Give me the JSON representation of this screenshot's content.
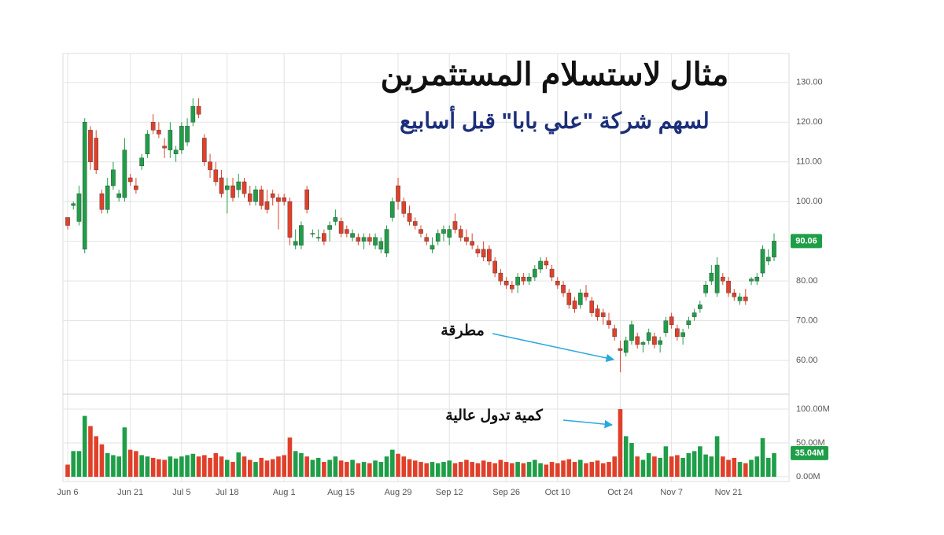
{
  "chart_data": {
    "type": "candlestick",
    "title": "مثال لاستسلام المستثمرين",
    "subtitle": "لسهم شركة \"علي بابا\" قبل أسابيع",
    "annotations": [
      "مطرقة",
      "كمية تدول عالية"
    ],
    "categories": [
      "Jun 6",
      null,
      null,
      null,
      null,
      null,
      null,
      null,
      null,
      null,
      null,
      "Jun 21",
      null,
      null,
      null,
      null,
      null,
      null,
      null,
      null,
      "Jul 5",
      null,
      null,
      null,
      null,
      null,
      null,
      null,
      "Jul 18",
      null,
      null,
      null,
      null,
      null,
      null,
      null,
      null,
      null,
      "Aug 1",
      null,
      null,
      null,
      null,
      null,
      null,
      null,
      null,
      null,
      "Aug 15",
      null,
      null,
      null,
      null,
      null,
      null,
      null,
      null,
      null,
      "Aug 29",
      null,
      null,
      null,
      null,
      null,
      null,
      null,
      null,
      "Sep 12",
      null,
      null,
      null,
      null,
      null,
      null,
      null,
      null,
      null,
      "Sep 26",
      null,
      null,
      null,
      null,
      null,
      null,
      null,
      null,
      "Oct 10",
      null,
      null,
      null,
      null,
      null,
      null,
      null,
      null,
      null,
      null,
      "Oct 24",
      null,
      null,
      null,
      null,
      null,
      null,
      null,
      null,
      "Nov 7",
      null,
      null,
      null,
      null,
      null,
      null,
      null,
      null,
      null,
      "Nov 21",
      null,
      null,
      null,
      null,
      null,
      null,
      null,
      null
    ],
    "open": [
      96,
      99,
      95,
      88,
      118,
      116,
      102,
      98,
      104,
      101,
      101,
      106,
      104,
      109,
      112,
      120,
      118,
      114,
      113,
      112,
      113,
      115,
      120,
      124,
      116,
      110,
      108,
      106,
      103,
      104,
      103,
      105,
      102,
      100,
      103,
      100,
      102,
      101,
      101,
      100,
      89,
      89,
      103,
      92,
      91,
      92,
      93,
      95,
      95,
      93,
      91,
      91,
      90,
      91,
      89,
      88,
      87,
      96,
      104,
      100,
      97,
      95,
      93,
      91,
      88,
      90,
      92,
      91,
      95,
      93,
      91,
      90,
      88,
      88,
      88,
      85,
      82,
      80,
      79,
      79,
      81,
      80,
      81,
      83,
      85,
      83,
      80,
      79,
      77,
      75,
      74,
      77,
      75,
      73,
      72,
      70,
      68,
      63,
      62,
      65,
      66,
      64,
      65,
      66,
      64,
      67,
      71,
      68,
      66,
      69,
      71,
      73,
      77,
      80,
      77,
      81,
      80,
      77,
      75,
      76,
      80,
      80,
      82,
      85,
      86
    ],
    "high": [
      96,
      100,
      104,
      121,
      119,
      118,
      103,
      106,
      110,
      103,
      116,
      107,
      106,
      112,
      118,
      122,
      120,
      116,
      120,
      114,
      120,
      121,
      126,
      126,
      117,
      112,
      110,
      108,
      106,
      106,
      107,
      106,
      104,
      104,
      104,
      103,
      103,
      102,
      102,
      101,
      93,
      95,
      104,
      93,
      93,
      93,
      95,
      98,
      96,
      94,
      93,
      92,
      92,
      92,
      92,
      91,
      94,
      101,
      106,
      101,
      99,
      96,
      94,
      92,
      91,
      93,
      94,
      94,
      97,
      94,
      93,
      92,
      89,
      90,
      89,
      86,
      83,
      81,
      80,
      82,
      82,
      82,
      84,
      86,
      86,
      84,
      81,
      80,
      78,
      76,
      78,
      79,
      76,
      74,
      73,
      72,
      69,
      65,
      66,
      70,
      67,
      65,
      68,
      67,
      66,
      71,
      72,
      69,
      68,
      71,
      73,
      75,
      80,
      84,
      86,
      82,
      81,
      78,
      77,
      78,
      81,
      82,
      89,
      88,
      92
    ],
    "low": [
      93,
      98,
      94,
      87,
      108,
      107,
      97,
      97,
      103,
      100,
      100,
      104,
      102,
      108,
      111,
      117,
      116,
      111,
      111,
      110,
      112,
      114,
      119,
      121,
      109,
      106,
      104,
      101,
      97,
      100,
      101,
      101,
      99,
      99,
      98,
      97,
      99,
      93,
      99,
      89,
      88,
      88,
      97,
      91,
      90,
      89,
      90,
      94,
      91,
      91,
      90,
      89,
      88,
      89,
      88,
      87,
      86,
      95,
      98,
      96,
      94,
      93,
      91,
      89,
      87,
      89,
      90,
      89,
      92,
      90,
      89,
      88,
      86,
      85,
      84,
      81,
      79,
      78,
      77,
      77,
      79,
      79,
      80,
      82,
      83,
      80,
      78,
      76,
      73,
      72,
      73,
      75,
      71,
      70,
      69,
      68,
      65,
      57,
      61,
      64,
      63,
      62,
      64,
      63,
      62,
      66,
      68,
      65,
      64,
      68,
      70,
      72,
      76,
      79,
      76,
      79,
      76,
      75,
      74,
      74,
      79,
      79,
      81,
      84,
      85
    ],
    "close": [
      94,
      99.5,
      102,
      120,
      110,
      108,
      98,
      104,
      108,
      102,
      113,
      105,
      103,
      111,
      117,
      118,
      117,
      113.5,
      118,
      113,
      119,
      119,
      124,
      122,
      110,
      108,
      105,
      102,
      104,
      101,
      105,
      102,
      100,
      103,
      99,
      98,
      101,
      100,
      100,
      91,
      90,
      94,
      98,
      92,
      91,
      90,
      94,
      96,
      92,
      92,
      92,
      90,
      91,
      90,
      91,
      90,
      93,
      100,
      100,
      97,
      95,
      94,
      92,
      90,
      89,
      92,
      93,
      93,
      93,
      91,
      90,
      89,
      87,
      86,
      85,
      82,
      80,
      79,
      78,
      81,
      80,
      81,
      83,
      85,
      84,
      81,
      79,
      77,
      74,
      73,
      77,
      76,
      72,
      71,
      71,
      69,
      66,
      62.5,
      65,
      69,
      64,
      64.5,
      67,
      64,
      65,
      70,
      69,
      66,
      67,
      70,
      72,
      74,
      79,
      82,
      84,
      80,
      77,
      76,
      76,
      75,
      80.5,
      81,
      88,
      86,
      90.06
    ],
    "volume": [
      18,
      38,
      38,
      90,
      75,
      60,
      48,
      35,
      32,
      30,
      73,
      40,
      38,
      32,
      30,
      28,
      26,
      25,
      30,
      27,
      30,
      32,
      34,
      30,
      32,
      28,
      35,
      30,
      25,
      22,
      36,
      30,
      25,
      22,
      28,
      24,
      26,
      30,
      32,
      58,
      38,
      35,
      30,
      25,
      28,
      22,
      25,
      30,
      24,
      22,
      25,
      20,
      22,
      20,
      24,
      22,
      30,
      40,
      34,
      30,
      26,
      24,
      22,
      20,
      22,
      20,
      22,
      24,
      20,
      22,
      25,
      22,
      20,
      24,
      22,
      20,
      25,
      22,
      20,
      22,
      20,
      22,
      25,
      20,
      18,
      22,
      20,
      24,
      26,
      22,
      25,
      20,
      22,
      24,
      20,
      22,
      30,
      100,
      60,
      50,
      30,
      25,
      35,
      30,
      28,
      45,
      30,
      32,
      28,
      35,
      38,
      45,
      33,
      30,
      60,
      30,
      25,
      28,
      22,
      20,
      25,
      30,
      57,
      28,
      35.04
    ],
    "price_tag": "90.06",
    "volume_tag": "35.04M",
    "up_color": "#1f9e48",
    "down_color": "#e0402a",
    "ylim": [
      51.7,
      137.3
    ],
    "yticks": [
      {
        "value": 60,
        "label": "60.00"
      },
      {
        "value": 70,
        "label": "70.00"
      },
      {
        "value": 80,
        "label": "80.00"
      },
      {
        "value": 90,
        "label": "90.00"
      },
      {
        "value": 100,
        "label": "100.00"
      },
      {
        "value": 110,
        "label": "110.00"
      },
      {
        "value": 120,
        "label": "120.00"
      },
      {
        "value": 130,
        "label": "130.00"
      }
    ],
    "volume_ylim": [
      -7,
      121
    ],
    "volume_yticks": [
      {
        "value": 0,
        "label": "0.00M"
      },
      {
        "value": 50,
        "label": "50.00M"
      },
      {
        "value": 100,
        "label": "100.00M"
      }
    ],
    "grid": true
  }
}
